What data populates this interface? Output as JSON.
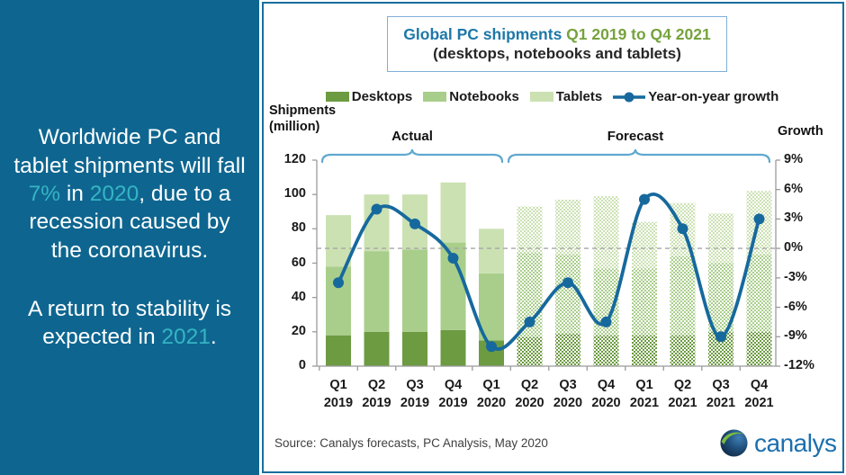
{
  "sidebar": {
    "bg_color": "#0E6690",
    "accent_color": "#35B4C4",
    "p1": {
      "a": "Worldwide PC and tablet shipments will fall ",
      "b": "7%",
      "c": " in ",
      "d": "2020",
      "e": ", due to a recession caused by the coronavirus."
    },
    "p2": {
      "a": "A return to stability is expected in ",
      "b": "2021",
      "c": "."
    }
  },
  "header": {
    "title_main": "Global PC shipments",
    "title_range": " Q1 2019 to Q4 2021",
    "subtitle": "(desktops, notebooks and tablets)"
  },
  "legend": {
    "desktops": "Desktops",
    "notebooks": "Notebooks",
    "tablets": "Tablets",
    "growth": "Year-on-year growth"
  },
  "annotations": {
    "actual": "Actual",
    "forecast": "Forecast",
    "left_axis_title_line1": "Shipments",
    "left_axis_title_line2": "(million)",
    "right_axis_title": "Growth"
  },
  "footer": {
    "source": "Source:  Canalys forecasts, PC Analysis, May 2020",
    "logo_text": "canalys"
  },
  "chart_data": {
    "type": "bar",
    "stacked": true,
    "title": "Global PC shipments Q1 2019 to Q4 2021 (desktops, notebooks and tablets)",
    "ylabel": "Shipments (million)",
    "ylabel_right": "Growth",
    "ylim_left": [
      0,
      120
    ],
    "ylim_right": [
      -12,
      9
    ],
    "left_ticks": [
      120,
      100,
      80,
      60,
      40,
      20,
      0
    ],
    "right_ticks": [
      9,
      6,
      3,
      0,
      -3,
      -6,
      -9,
      -12
    ],
    "legend_position": "top",
    "grid": "zero-growth dashed line only",
    "categories": [
      "Q1 2019",
      "Q2 2019",
      "Q3 2019",
      "Q4 2019",
      "Q1 2020",
      "Q2 2020",
      "Q3 2020",
      "Q4 2020",
      "Q1 2021",
      "Q2 2021",
      "Q3 2021",
      "Q4 2021"
    ],
    "forecast_start_index": 5,
    "actual_label_range": [
      "Q1 2019",
      "Q1 2020"
    ],
    "forecast_label_range": [
      "Q2 2020",
      "Q4 2021"
    ],
    "series": [
      {
        "name": "Desktops",
        "color": "#6C9B41",
        "values": [
          18,
          20,
          20,
          21,
          15,
          17,
          19,
          18,
          18,
          18,
          20,
          20
        ]
      },
      {
        "name": "Notebooks",
        "color": "#A9CE8B",
        "values": [
          40,
          47,
          48,
          51,
          39,
          49,
          46,
          39,
          39,
          46,
          40,
          45
        ]
      },
      {
        "name": "Tablets",
        "color": "#CBE1B2",
        "values": [
          30,
          33,
          32,
          35,
          26,
          27,
          32,
          42,
          27,
          31,
          29,
          37
        ]
      }
    ],
    "line_series": {
      "name": "Year-on-year growth",
      "axis": "right",
      "unit": "%",
      "color": "#16699D",
      "values": [
        -3.5,
        4,
        2.5,
        -1,
        -10,
        -7.5,
        -3.5,
        -7.5,
        5,
        2,
        -9,
        3
      ]
    }
  }
}
